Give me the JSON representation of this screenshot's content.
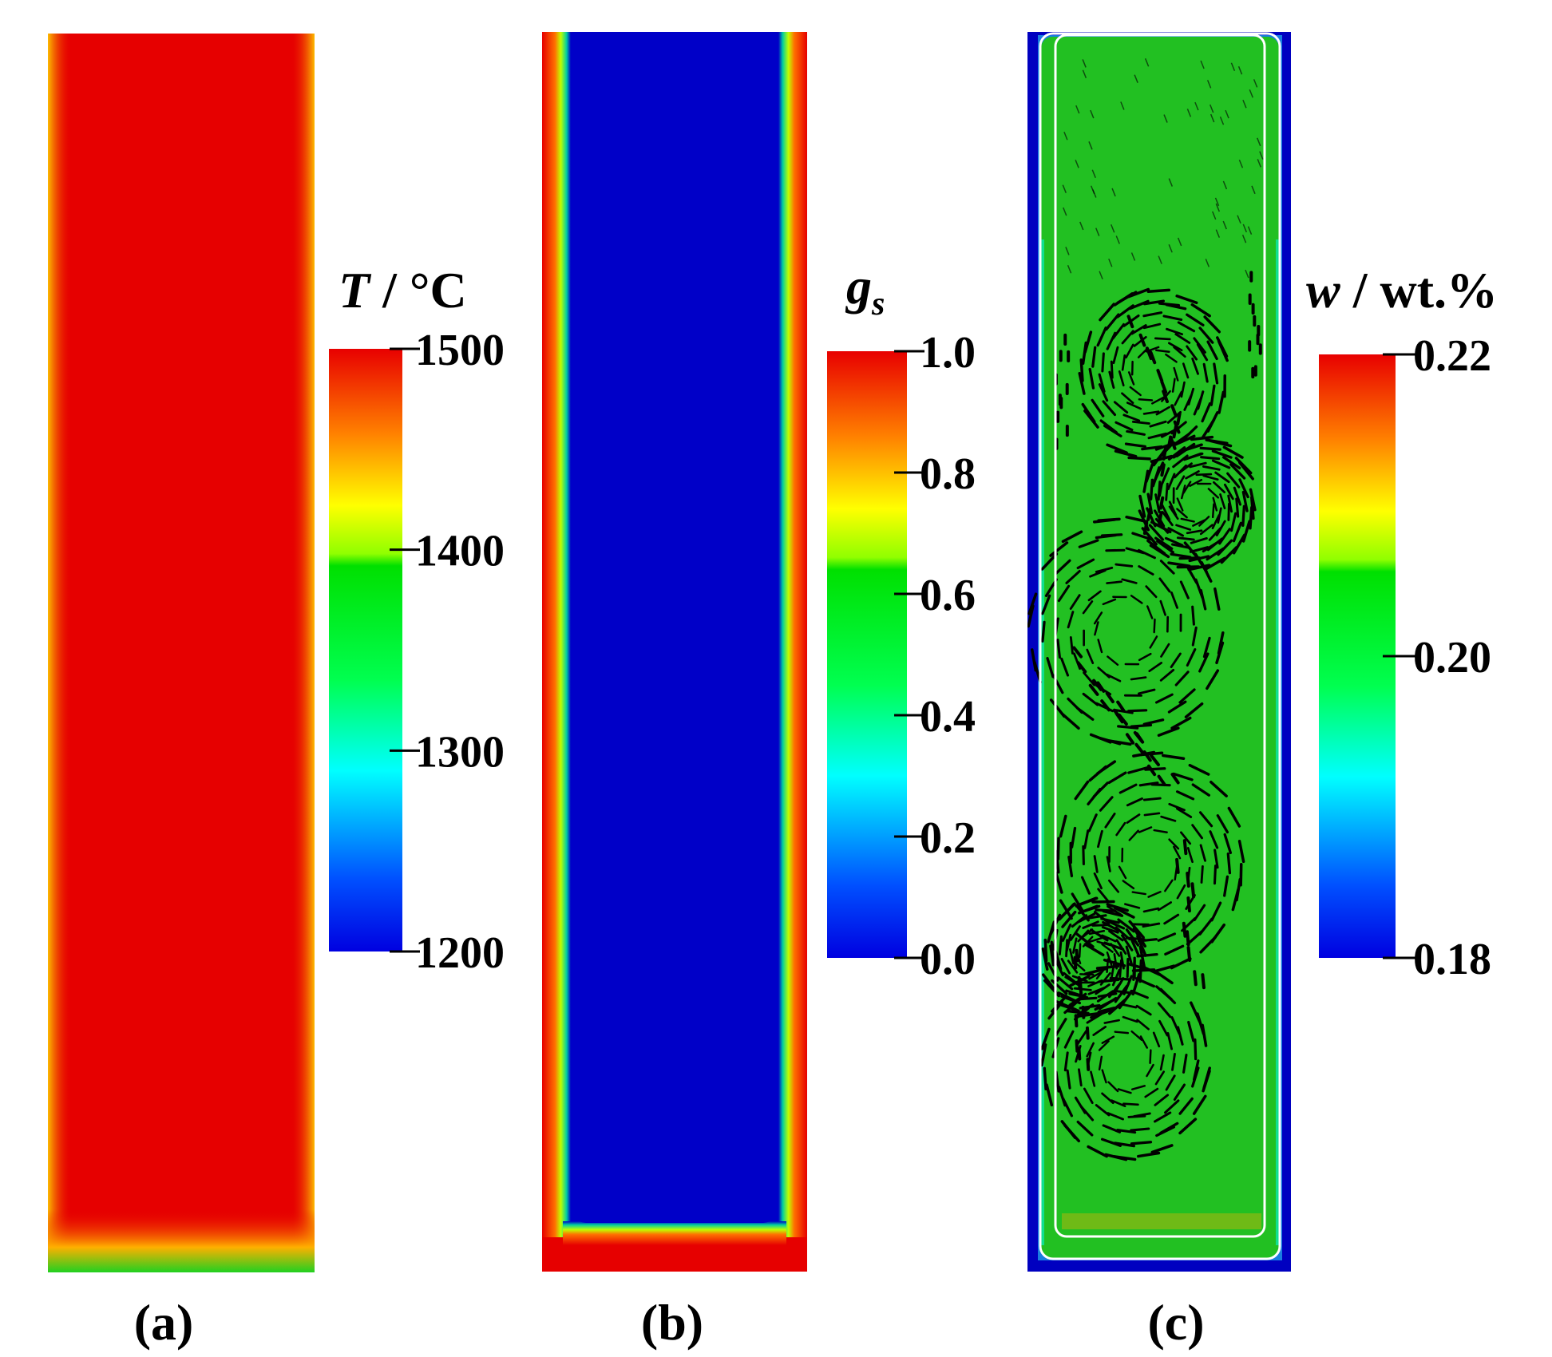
{
  "colors": {
    "jet_stops": [
      "#0000e0",
      "#0050ff",
      "#00ffff",
      "#00ff50",
      "#00e000",
      "#ffff00",
      "#ff8000",
      "#e80000"
    ],
    "hot_red": "#e60000",
    "liquid_blue": "#0000c8",
    "fluid_green": "#22c022",
    "vector_black": "#000000",
    "liquidus_white": "#ffffff"
  },
  "panels": [
    {
      "label": "(a)",
      "field": "temperature",
      "colorbar": {
        "title_main": "T",
        "title_rest": " / °C",
        "min": 1200,
        "max": 1500,
        "ticks": [
          {
            "value": 1500,
            "label": "1500"
          },
          {
            "value": 1400,
            "label": "1400"
          },
          {
            "value": 1300,
            "label": "1300"
          },
          {
            "value": 1200,
            "label": "1200"
          }
        ]
      }
    },
    {
      "label": "(b)",
      "field": "solid_fraction",
      "colorbar": {
        "title_main": "g",
        "title_sub": "s",
        "min": 0.0,
        "max": 1.0,
        "ticks": [
          {
            "value": 1.0,
            "label": "1.0"
          },
          {
            "value": 0.8,
            "label": "0.8"
          },
          {
            "value": 0.6,
            "label": "0.6"
          },
          {
            "value": 0.4,
            "label": "0.4"
          },
          {
            "value": 0.2,
            "label": "0.2"
          },
          {
            "value": 0.0,
            "label": "0.0"
          }
        ]
      }
    },
    {
      "label": "(c)",
      "field": "concentration",
      "colorbar": {
        "title_main": "w",
        "title_rest": " / wt.%",
        "min": 0.18,
        "max": 0.22,
        "ticks": [
          {
            "value": 0.22,
            "label": "0.22"
          },
          {
            "value": 0.2,
            "label": "0.20"
          },
          {
            "value": 0.18,
            "label": "0.18"
          }
        ]
      }
    }
  ]
}
